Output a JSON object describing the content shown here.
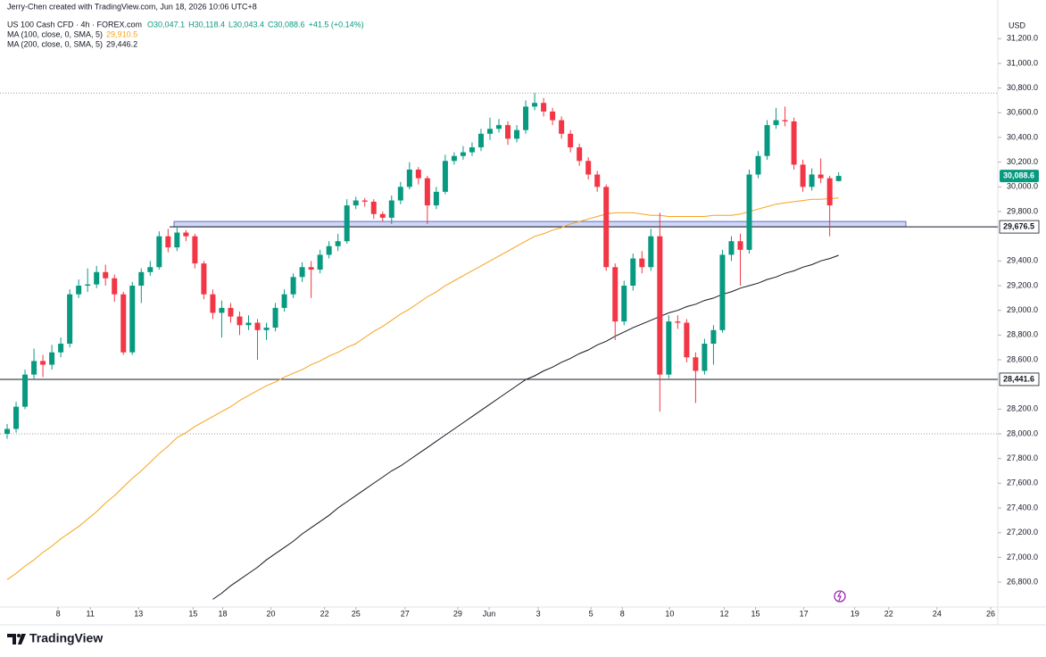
{
  "chart_data": {
    "type": "candlestick",
    "credit": "Jerry-Chen created with TradingView.com, Jun 18, 2026 10:06 UTC+8",
    "symbol": "US 100 Cash CFD · 4h · FOREX.com",
    "ohlc": [
      "O30,047.1",
      "H30,118.4",
      "L30,043.4",
      "C30,088.6",
      "+41.5 (+0.14%)"
    ],
    "currency": "USD",
    "brand": "TradingView",
    "up_color": "#089981",
    "down_color": "#f23645",
    "open": [
      28000,
      28040,
      28220,
      28480,
      28590,
      28560,
      28660,
      28730,
      29130,
      29200,
      29210,
      29310,
      29260,
      29130,
      28660,
      29200,
      29310,
      29350,
      29600,
      29510,
      29630,
      29600,
      29380,
      29130,
      28980,
      29020,
      28950,
      28880,
      28900,
      28840,
      28860,
      29020,
      29130,
      29270,
      29350,
      29330,
      29450,
      29520,
      29560,
      29850,
      29890,
      29880,
      29780,
      29750,
      29890,
      30000,
      30140,
      30070,
      29850,
      29960,
      30210,
      30250,
      30280,
      30320,
      30430,
      30470,
      30500,
      30390,
      30460,
      30650,
      30680,
      30610,
      30540,
      30430,
      30320,
      30210,
      30100,
      30000,
      29350,
      28910,
      29200,
      29420,
      29350,
      29600,
      28480,
      28910,
      28900,
      28620,
      28510,
      28730,
      28840,
      29450,
      29560,
      29490,
      30100,
      30250,
      30500,
      30540,
      30530,
      30180,
      30000,
      30100,
      30070,
      30047.1
    ],
    "high": [
      28080,
      28260,
      28520,
      28690,
      28640,
      28720,
      28780,
      29170,
      29250,
      29340,
      29360,
      29370,
      29290,
      29150,
      29230,
      29340,
      29400,
      29640,
      29660,
      29680,
      29650,
      29620,
      29400,
      29170,
      29080,
      29060,
      28990,
      28960,
      28930,
      28900,
      29060,
      29170,
      29300,
      29390,
      29400,
      29490,
      29560,
      29620,
      29900,
      29920,
      29910,
      29900,
      29800,
      29930,
      30040,
      30200,
      30160,
      30090,
      30000,
      30260,
      30280,
      30330,
      30360,
      30470,
      30560,
      30550,
      30530,
      30500,
      30700,
      30760,
      30720,
      30640,
      30570,
      30460,
      30350,
      30240,
      30130,
      30020,
      29380,
      29240,
      29460,
      29480,
      29660,
      29790,
      28960,
      28960,
      28930,
      28660,
      28770,
      28880,
      29490,
      29600,
      29620,
      30140,
      30290,
      30540,
      30640,
      30650,
      30560,
      30220,
      30150,
      30230,
      30090,
      30118.4
    ],
    "low": [
      27960,
      28010,
      28200,
      28440,
      28460,
      28520,
      28620,
      28700,
      29100,
      29150,
      29180,
      29200,
      29070,
      28640,
      28640,
      29060,
      29280,
      29330,
      29470,
      29480,
      29560,
      29340,
      29090,
      28930,
      28780,
      28900,
      28800,
      28840,
      28600,
      28760,
      28830,
      28990,
      29100,
      29230,
      29100,
      29300,
      29420,
      29480,
      29540,
      29820,
      29840,
      29740,
      29720,
      29700,
      29860,
      29980,
      30020,
      29700,
      29820,
      29940,
      30180,
      30220,
      30250,
      30290,
      30380,
      30440,
      30340,
      30360,
      30430,
      30620,
      30570,
      30500,
      30390,
      30280,
      30170,
      30060,
      29960,
      29320,
      28760,
      28880,
      29160,
      29300,
      29320,
      28180,
      28450,
      28850,
      28580,
      28250,
      28480,
      28560,
      28820,
      29400,
      29200,
      29460,
      30070,
      30220,
      30470,
      30490,
      30140,
      29960,
      29970,
      30030,
      29600,
      30043.4
    ],
    "close": [
      28040,
      28220,
      28480,
      28590,
      28560,
      28660,
      28730,
      29130,
      29200,
      29210,
      29310,
      29260,
      29130,
      28660,
      29200,
      29310,
      29350,
      29600,
      29510,
      29630,
      29600,
      29380,
      29130,
      28980,
      29020,
      28950,
      28880,
      28900,
      28840,
      28860,
      29020,
      29130,
      29270,
      29350,
      29330,
      29450,
      29520,
      29560,
      29850,
      29890,
      29880,
      29780,
      29750,
      29890,
      30000,
      30140,
      30070,
      29850,
      29960,
      30210,
      30250,
      30280,
      30320,
      30430,
      30470,
      30500,
      30390,
      30460,
      30650,
      30680,
      30610,
      30540,
      30430,
      30320,
      30210,
      30100,
      30000,
      29350,
      28910,
      29200,
      29420,
      29350,
      29600,
      28480,
      28910,
      28900,
      28620,
      28510,
      28730,
      28840,
      29450,
      29560,
      29490,
      30100,
      30250,
      30500,
      30540,
      30530,
      30180,
      30000,
      30100,
      30070,
      29850,
      30088.6
    ],
    "series": [
      {
        "name": "MA (100, close, 0, SMA, 5)",
        "last_label": "29,910.5",
        "color": "#f7a21b",
        "values": [
          26820,
          26870,
          26930,
          26980,
          27040,
          27090,
          27150,
          27200,
          27250,
          27310,
          27370,
          27440,
          27500,
          27570,
          27640,
          27700,
          27770,
          27840,
          27900,
          27970,
          28010,
          28060,
          28100,
          28140,
          28180,
          28220,
          28270,
          28310,
          28350,
          28390,
          28420,
          28460,
          28490,
          28520,
          28560,
          28590,
          28630,
          28660,
          28700,
          28730,
          28780,
          28830,
          28870,
          28920,
          28970,
          29010,
          29060,
          29110,
          29150,
          29200,
          29240,
          29280,
          29320,
          29360,
          29400,
          29440,
          29480,
          29520,
          29560,
          29600,
          29620,
          29650,
          29670,
          29700,
          29720,
          29740,
          29760,
          29780,
          29790,
          29790,
          29790,
          29780,
          29770,
          29770,
          29760,
          29760,
          29760,
          29760,
          29760,
          29770,
          29770,
          29770,
          29780,
          29800,
          29820,
          29840,
          29860,
          29870,
          29880,
          29890,
          29900,
          29900,
          29905,
          29910.5
        ]
      },
      {
        "name": "MA (200, close, 0, SMA, 5)",
        "last_label": "29,446.2",
        "color": "#131722",
        "values": [
          null,
          null,
          null,
          null,
          null,
          null,
          null,
          null,
          null,
          null,
          null,
          null,
          null,
          null,
          null,
          null,
          null,
          null,
          null,
          null,
          null,
          null,
          null,
          26660,
          26710,
          26770,
          26820,
          26870,
          26920,
          26980,
          27030,
          27080,
          27130,
          27190,
          27240,
          27290,
          27340,
          27400,
          27450,
          27500,
          27550,
          27600,
          27650,
          27700,
          27740,
          27790,
          27840,
          27890,
          27940,
          27990,
          28040,
          28090,
          28140,
          28190,
          28240,
          28290,
          28340,
          28390,
          28440,
          28470,
          28510,
          28540,
          28580,
          28610,
          28650,
          28680,
          28720,
          28750,
          28790,
          28825,
          28860,
          28890,
          28920,
          28950,
          28980,
          29000,
          29030,
          29050,
          29080,
          29100,
          29130,
          29150,
          29180,
          29200,
          29220,
          29250,
          29270,
          29300,
          29320,
          29350,
          29370,
          29400,
          29420,
          29446.2
        ]
      }
    ],
    "last_price": {
      "value": 30088.6,
      "label": "30,088.6"
    },
    "levels": [
      {
        "value": 29676.5,
        "label": "29,676.5"
      },
      {
        "value": 28441.6,
        "label": "28,441.6"
      }
    ],
    "zone": [
      29676.5,
      29720
    ],
    "dotted_levels": [
      30760,
      28000
    ],
    "xlim": [
      -0.8,
      110.8
    ],
    "xticks": [
      {
        "value": 5.7,
        "label": "8"
      },
      {
        "value": 9.3,
        "label": "11"
      },
      {
        "value": 14.7,
        "label": "13"
      },
      {
        "value": 20.8,
        "label": "15"
      },
      {
        "value": 24.1,
        "label": "18"
      },
      {
        "value": 29.5,
        "label": "20"
      },
      {
        "value": 35.5,
        "label": "22"
      },
      {
        "value": 39.0,
        "label": "25"
      },
      {
        "value": 44.5,
        "label": "27"
      },
      {
        "value": 50.4,
        "label": "29"
      },
      {
        "value": 53.9,
        "label": "Jun"
      },
      {
        "value": 59.4,
        "label": "3"
      },
      {
        "value": 65.3,
        "label": "5"
      },
      {
        "value": 68.8,
        "label": "8"
      },
      {
        "value": 74.1,
        "label": "10"
      },
      {
        "value": 80.2,
        "label": "12"
      },
      {
        "value": 83.7,
        "label": "15"
      },
      {
        "value": 89.1,
        "label": "17"
      },
      {
        "value": 94.8,
        "label": "19"
      },
      {
        "value": 98.6,
        "label": "22"
      },
      {
        "value": 104.0,
        "label": "24"
      },
      {
        "value": 110.0,
        "label": "26"
      }
    ],
    "ylim": [
      26598,
      31383
    ],
    "yticks": [
      {
        "value": 26800,
        "label": "26,800.0"
      },
      {
        "value": 27000,
        "label": "27,000.0"
      },
      {
        "value": 27200,
        "label": "27,200.0"
      },
      {
        "value": 27400,
        "label": "27,400.0"
      },
      {
        "value": 27600,
        "label": "27,600.0"
      },
      {
        "value": 27800,
        "label": "27,800.0"
      },
      {
        "value": 28000,
        "label": "28,000.0"
      },
      {
        "value": 28200,
        "label": "28,200.0"
      },
      {
        "value": 28600,
        "label": "28,600.0"
      },
      {
        "value": 28800,
        "label": "28,800.0"
      },
      {
        "value": 29000,
        "label": "29,000.0"
      },
      {
        "value": 29200,
        "label": "29,200.0"
      },
      {
        "value": 29400,
        "label": "29,400.0"
      },
      {
        "value": 29800,
        "label": "29,800.0"
      },
      {
        "value": 30000,
        "label": "30,000.0"
      },
      {
        "value": 30200,
        "label": "30,200.0"
      },
      {
        "value": 30400,
        "label": "30,400.0"
      },
      {
        "value": 30600,
        "label": "30,600.0"
      },
      {
        "value": 30800,
        "label": "30,800.0"
      },
      {
        "value": 31000,
        "label": "31,000.0"
      },
      {
        "value": 31200,
        "label": "31,200.0"
      }
    ],
    "grid": false
  }
}
